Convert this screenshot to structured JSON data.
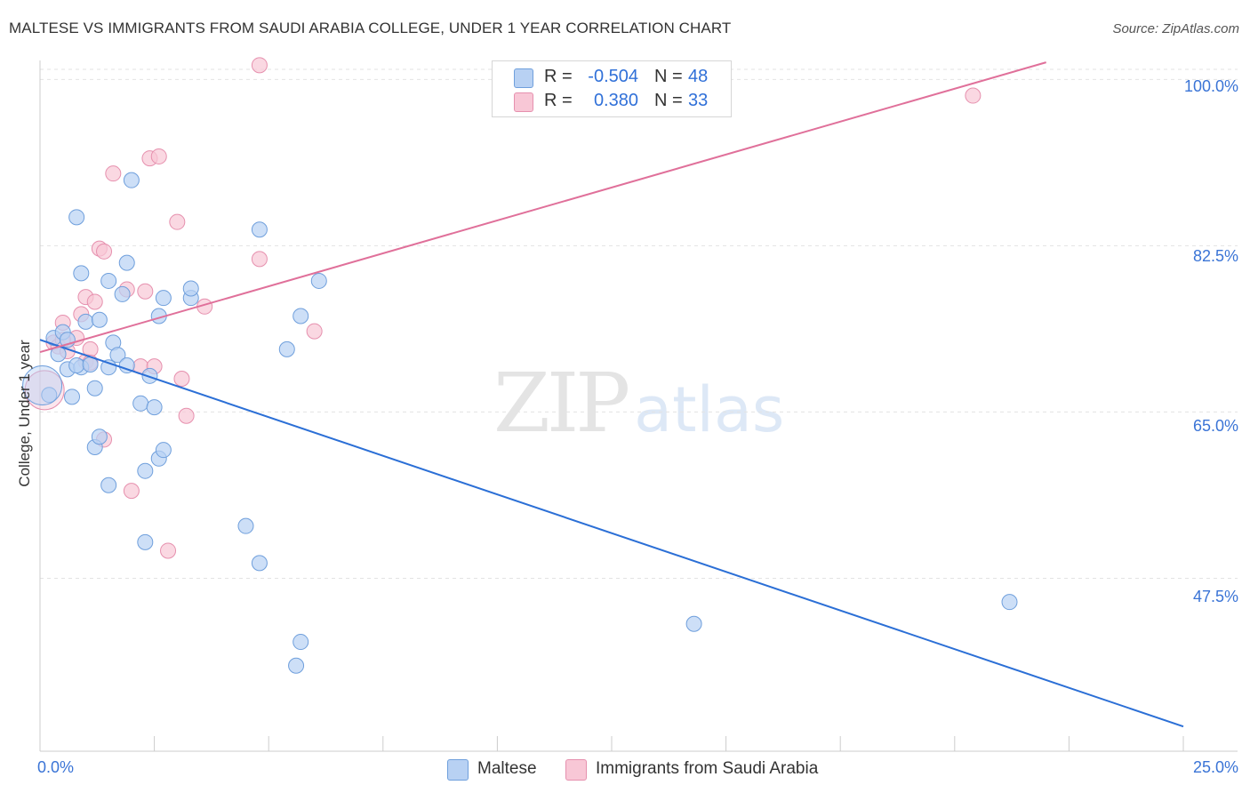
{
  "title": "MALTESE VS IMMIGRANTS FROM SAUDI ARABIA COLLEGE, UNDER 1 YEAR CORRELATION CHART",
  "source": "Source: ZipAtlas.com",
  "watermark": {
    "zip": "ZIP",
    "atlas": "atlas"
  },
  "legend": {
    "rows": [
      {
        "r_label": "R =",
        "r_value": "-0.504",
        "n_label": "N =",
        "n_value": "48"
      },
      {
        "r_label": "R =",
        "r_value": "0.380",
        "n_label": "N =",
        "n_value": "33"
      }
    ]
  },
  "x_axis": {
    "min_label": "0.0%",
    "max_label": "25.0%"
  },
  "y_axis": {
    "title": "College, Under 1 year",
    "ticks": [
      "100.0%",
      "82.5%",
      "65.0%",
      "47.5%"
    ]
  },
  "colors": {
    "maltese_fill": "#b8d1f3",
    "maltese_stroke": "#6f9fdc",
    "maltese_line": "#2b6fd6",
    "saudi_fill": "#f8c7d6",
    "saudi_stroke": "#e690ae",
    "saudi_line": "#e0709a",
    "grid": "#e3e3e3",
    "axis_text": "#3a74d6"
  },
  "chart_data": {
    "type": "scatter",
    "xlabel": "",
    "ylabel": "College, Under 1 year",
    "xlim": [
      0,
      25
    ],
    "ylim": [
      30.7,
      102
    ],
    "y_ticks": [
      100.0,
      82.5,
      65.0,
      47.5
    ],
    "series": [
      {
        "name": "Maltese",
        "points": [
          [
            0.2,
            66.8
          ],
          [
            0.4,
            71.1
          ],
          [
            0.3,
            72.8
          ],
          [
            0.5,
            73.4
          ],
          [
            0.6,
            69.5
          ],
          [
            0.6,
            72.6
          ],
          [
            0.7,
            66.6
          ],
          [
            0.9,
            69.7
          ],
          [
            0.8,
            85.5
          ],
          [
            0.8,
            69.9
          ],
          [
            0.9,
            79.6
          ],
          [
            1.0,
            74.5
          ],
          [
            1.1,
            70.0
          ],
          [
            1.2,
            67.5
          ],
          [
            1.2,
            61.3
          ],
          [
            1.3,
            62.4
          ],
          [
            1.3,
            74.7
          ],
          [
            1.5,
            69.7
          ],
          [
            1.5,
            78.8
          ],
          [
            1.5,
            57.3
          ],
          [
            1.6,
            72.3
          ],
          [
            1.7,
            71.0
          ],
          [
            1.8,
            77.4
          ],
          [
            1.9,
            80.7
          ],
          [
            1.9,
            69.9
          ],
          [
            2.0,
            89.4
          ],
          [
            2.2,
            65.9
          ],
          [
            2.3,
            58.8
          ],
          [
            2.3,
            51.3
          ],
          [
            2.4,
            68.8
          ],
          [
            2.5,
            65.5
          ],
          [
            2.6,
            60.1
          ],
          [
            2.6,
            75.1
          ],
          [
            2.7,
            61.0
          ],
          [
            2.7,
            77.0
          ],
          [
            3.3,
            77.0
          ],
          [
            3.3,
            78.0
          ],
          [
            4.5,
            53.0
          ],
          [
            4.8,
            84.2
          ],
          [
            4.8,
            49.1
          ],
          [
            5.4,
            71.6
          ],
          [
            5.7,
            75.1
          ],
          [
            5.6,
            38.3
          ],
          [
            5.7,
            40.8
          ],
          [
            6.1,
            78.8
          ],
          [
            14.3,
            42.7
          ],
          [
            21.2,
            45.0
          ],
          [
            0.05,
            67.8
          ]
        ]
      },
      {
        "name": "Immigrants from Saudi Arabia",
        "points": [
          [
            0.3,
            72.3
          ],
          [
            0.4,
            71.9
          ],
          [
            0.5,
            74.4
          ],
          [
            0.6,
            71.4
          ],
          [
            0.8,
            72.8
          ],
          [
            0.5,
            72.6
          ],
          [
            0.9,
            75.3
          ],
          [
            1.0,
            77.1
          ],
          [
            1.0,
            70.3
          ],
          [
            1.1,
            71.6
          ],
          [
            1.1,
            70.2
          ],
          [
            1.2,
            76.6
          ],
          [
            1.3,
            82.2
          ],
          [
            1.4,
            62.1
          ],
          [
            1.4,
            81.9
          ],
          [
            1.6,
            90.1
          ],
          [
            1.9,
            77.9
          ],
          [
            2.0,
            56.7
          ],
          [
            2.2,
            69.8
          ],
          [
            2.3,
            77.7
          ],
          [
            2.4,
            91.7
          ],
          [
            2.5,
            69.8
          ],
          [
            2.6,
            91.9
          ],
          [
            2.8,
            50.4
          ],
          [
            3.0,
            85.0
          ],
          [
            3.1,
            68.5
          ],
          [
            3.2,
            64.6
          ],
          [
            3.6,
            76.1
          ],
          [
            4.8,
            81.1
          ],
          [
            4.8,
            101.5
          ],
          [
            6.0,
            73.5
          ],
          [
            20.4,
            98.3
          ],
          [
            0.1,
            67.3
          ]
        ]
      }
    ],
    "trend_lines": [
      {
        "series": "Maltese",
        "from": [
          0,
          72.6
        ],
        "to": [
          25,
          31.9
        ]
      },
      {
        "series": "Immigrants from Saudi Arabia",
        "from": [
          0,
          71.3
        ],
        "to": [
          22.0,
          101.8
        ]
      }
    ],
    "legend_position": "top-center"
  },
  "bottom_legend": [
    "Maltese",
    "Immigrants from Saudi Arabia"
  ]
}
